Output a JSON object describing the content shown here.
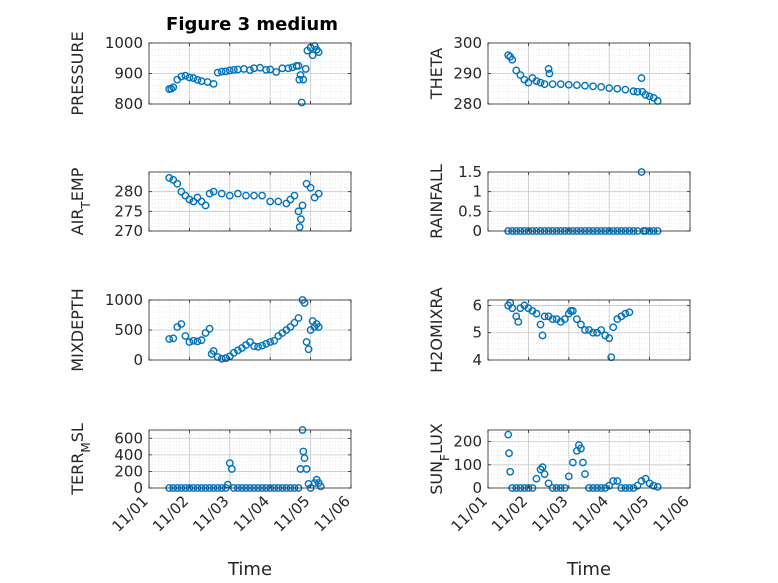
{
  "figure": {
    "title": "Figure 3 medium",
    "marker_color": "#0072BD",
    "marker": "open circle",
    "grid": true,
    "minor_grid": true
  },
  "chart_data": [
    {
      "type": "scatter",
      "ylabel": "PRESSURE",
      "ylim": [
        800,
        1000
      ],
      "yticks": [
        800,
        900,
        1000
      ],
      "ytick_labels": [
        "800",
        "900",
        "1000"
      ],
      "xlim": [
        1.0,
        6.0
      ],
      "xticks": [],
      "xtick_labels": [],
      "points": [
        [
          1.5,
          849
        ],
        [
          1.55,
          850
        ],
        [
          1.6,
          855
        ],
        [
          1.7,
          880
        ],
        [
          1.8,
          890
        ],
        [
          1.9,
          893
        ],
        [
          2.0,
          887
        ],
        [
          2.1,
          885
        ],
        [
          2.2,
          879
        ],
        [
          2.3,
          875
        ],
        [
          2.45,
          872
        ],
        [
          2.6,
          866
        ],
        [
          2.7,
          903
        ],
        [
          2.8,
          906
        ],
        [
          2.9,
          907
        ],
        [
          3.0,
          910
        ],
        [
          3.1,
          912
        ],
        [
          3.2,
          913
        ],
        [
          3.35,
          915
        ],
        [
          3.5,
          911
        ],
        [
          3.6,
          917
        ],
        [
          3.75,
          919
        ],
        [
          3.9,
          912
        ],
        [
          4.0,
          913
        ],
        [
          4.15,
          905
        ],
        [
          4.3,
          917
        ],
        [
          4.45,
          917
        ],
        [
          4.55,
          920
        ],
        [
          4.65,
          925
        ],
        [
          4.7,
          925
        ],
        [
          4.72,
          880
        ],
        [
          4.75,
          895
        ],
        [
          4.78,
          805
        ],
        [
          4.82,
          880
        ],
        [
          4.88,
          915
        ],
        [
          4.92,
          975
        ],
        [
          5.0,
          985
        ],
        [
          5.05,
          960
        ],
        [
          5.1,
          990
        ],
        [
          5.15,
          978
        ],
        [
          5.2,
          970
        ]
      ]
    },
    {
      "type": "scatter",
      "ylabel": "THETA",
      "ylim": [
        280,
        300
      ],
      "yticks": [
        280,
        290,
        300
      ],
      "ytick_labels": [
        "280",
        "290",
        "300"
      ],
      "xlim": [
        1.0,
        6.0
      ],
      "xticks": [],
      "xtick_labels": [],
      "points": [
        [
          1.5,
          296
        ],
        [
          1.55,
          295.5
        ],
        [
          1.6,
          294.5
        ],
        [
          1.7,
          291
        ],
        [
          1.8,
          289.5
        ],
        [
          1.9,
          288
        ],
        [
          2.0,
          287
        ],
        [
          2.1,
          288.5
        ],
        [
          2.2,
          287.5
        ],
        [
          2.3,
          287
        ],
        [
          2.4,
          286.5
        ],
        [
          2.5,
          291.5
        ],
        [
          2.52,
          290
        ],
        [
          2.6,
          286.5
        ],
        [
          2.8,
          286.5
        ],
        [
          3.0,
          286.3
        ],
        [
          3.2,
          286.2
        ],
        [
          3.4,
          286
        ],
        [
          3.6,
          285.8
        ],
        [
          3.8,
          285.6
        ],
        [
          4.0,
          285.2
        ],
        [
          4.2,
          285
        ],
        [
          4.4,
          284.7
        ],
        [
          4.6,
          284.2
        ],
        [
          4.7,
          284
        ],
        [
          4.8,
          288.5
        ],
        [
          4.82,
          284
        ],
        [
          4.9,
          283
        ],
        [
          5.0,
          282.5
        ],
        [
          5.1,
          282
        ],
        [
          5.2,
          281
        ]
      ]
    },
    {
      "type": "scatter",
      "ylabel": "AIR_TEMP",
      "ylim": [
        270,
        285
      ],
      "yticks": [
        270,
        275,
        280
      ],
      "ytick_labels": [
        "270",
        "275",
        "280"
      ],
      "xlim": [
        1.0,
        6.0
      ],
      "xticks": [],
      "xtick_labels": [],
      "points": [
        [
          1.5,
          283.5
        ],
        [
          1.6,
          283
        ],
        [
          1.7,
          282
        ],
        [
          1.8,
          280
        ],
        [
          1.9,
          279
        ],
        [
          2.0,
          278
        ],
        [
          2.1,
          277.5
        ],
        [
          2.2,
          278.5
        ],
        [
          2.3,
          277.5
        ],
        [
          2.4,
          276.5
        ],
        [
          2.5,
          279.5
        ],
        [
          2.6,
          280
        ],
        [
          2.8,
          279.5
        ],
        [
          3.0,
          279
        ],
        [
          3.2,
          279.5
        ],
        [
          3.4,
          279
        ],
        [
          3.6,
          279
        ],
        [
          3.8,
          279
        ],
        [
          4.0,
          277.5
        ],
        [
          4.2,
          277.5
        ],
        [
          4.4,
          277
        ],
        [
          4.5,
          278
        ],
        [
          4.6,
          279
        ],
        [
          4.7,
          275
        ],
        [
          4.73,
          271
        ],
        [
          4.76,
          273
        ],
        [
          4.8,
          276.5
        ],
        [
          4.9,
          282
        ],
        [
          5.0,
          281
        ],
        [
          5.1,
          278.5
        ],
        [
          5.2,
          279.5
        ]
      ]
    },
    {
      "type": "scatter",
      "ylabel": "RAINFALL",
      "ylim": [
        0,
        1.5
      ],
      "yticks": [
        0,
        0.5,
        1,
        1.5
      ],
      "ytick_labels": [
        "0",
        "0.5",
        "1",
        "1.5"
      ],
      "xlim": [
        1.0,
        6.0
      ],
      "xticks": [],
      "xtick_labels": [],
      "points": [
        [
          1.5,
          0
        ],
        [
          1.6,
          0
        ],
        [
          1.7,
          0
        ],
        [
          1.8,
          0
        ],
        [
          1.9,
          0
        ],
        [
          2.0,
          0
        ],
        [
          2.1,
          0
        ],
        [
          2.2,
          0
        ],
        [
          2.3,
          0
        ],
        [
          2.4,
          0
        ],
        [
          2.5,
          0
        ],
        [
          2.6,
          0
        ],
        [
          2.7,
          0
        ],
        [
          2.8,
          0
        ],
        [
          2.9,
          0
        ],
        [
          3.0,
          0
        ],
        [
          3.1,
          0
        ],
        [
          3.2,
          0
        ],
        [
          3.3,
          0
        ],
        [
          3.4,
          0
        ],
        [
          3.5,
          0
        ],
        [
          3.6,
          0
        ],
        [
          3.7,
          0
        ],
        [
          3.8,
          0
        ],
        [
          3.9,
          0
        ],
        [
          4.0,
          0
        ],
        [
          4.1,
          0
        ],
        [
          4.2,
          0
        ],
        [
          4.3,
          0
        ],
        [
          4.4,
          0
        ],
        [
          4.5,
          0
        ],
        [
          4.6,
          0
        ],
        [
          4.7,
          0
        ],
        [
          4.8,
          1.5
        ],
        [
          4.85,
          0
        ],
        [
          4.9,
          0
        ],
        [
          5.0,
          0
        ],
        [
          5.1,
          0
        ],
        [
          5.2,
          0
        ]
      ]
    },
    {
      "type": "scatter",
      "ylabel": "MIXDEPTH",
      "ylim": [
        0,
        1000
      ],
      "yticks": [
        0,
        500,
        1000
      ],
      "ytick_labels": [
        "0",
        "500",
        "1000"
      ],
      "xlim": [
        1.0,
        6.0
      ],
      "xticks": [],
      "xtick_labels": [],
      "points": [
        [
          1.5,
          350
        ],
        [
          1.6,
          360
        ],
        [
          1.7,
          550
        ],
        [
          1.8,
          600
        ],
        [
          1.9,
          400
        ],
        [
          2.0,
          300
        ],
        [
          2.1,
          320
        ],
        [
          2.2,
          310
        ],
        [
          2.3,
          330
        ],
        [
          2.4,
          450
        ],
        [
          2.5,
          520
        ],
        [
          2.55,
          100
        ],
        [
          2.6,
          150
        ],
        [
          2.7,
          50
        ],
        [
          2.8,
          20
        ],
        [
          2.9,
          30
        ],
        [
          3.0,
          60
        ],
        [
          3.1,
          120
        ],
        [
          3.2,
          160
        ],
        [
          3.3,
          200
        ],
        [
          3.4,
          250
        ],
        [
          3.5,
          300
        ],
        [
          3.6,
          230
        ],
        [
          3.7,
          220
        ],
        [
          3.8,
          240
        ],
        [
          3.9,
          270
        ],
        [
          4.0,
          300
        ],
        [
          4.1,
          320
        ],
        [
          4.2,
          400
        ],
        [
          4.3,
          450
        ],
        [
          4.4,
          500
        ],
        [
          4.5,
          550
        ],
        [
          4.6,
          620
        ],
        [
          4.7,
          700
        ],
        [
          4.8,
          1000
        ],
        [
          4.85,
          950
        ],
        [
          4.9,
          300
        ],
        [
          4.95,
          180
        ],
        [
          5.0,
          500
        ],
        [
          5.05,
          650
        ],
        [
          5.1,
          550
        ],
        [
          5.15,
          600
        ],
        [
          5.2,
          550
        ]
      ]
    },
    {
      "type": "scatter",
      "ylabel": "H2OMIXRA",
      "ylim": [
        4,
        6.2
      ],
      "yticks": [
        4,
        5,
        6
      ],
      "ytick_labels": [
        "4",
        "5",
        "6"
      ],
      "xlim": [
        1.0,
        6.0
      ],
      "xticks": [],
      "xtick_labels": [],
      "points": [
        [
          1.5,
          6
        ],
        [
          1.55,
          6.1
        ],
        [
          1.6,
          5.9
        ],
        [
          1.7,
          5.6
        ],
        [
          1.75,
          5.4
        ],
        [
          1.8,
          5.9
        ],
        [
          1.9,
          6
        ],
        [
          2.0,
          5.9
        ],
        [
          2.1,
          5.8
        ],
        [
          2.2,
          5.7
        ],
        [
          2.3,
          5.3
        ],
        [
          2.35,
          4.9
        ],
        [
          2.4,
          5.6
        ],
        [
          2.5,
          5.6
        ],
        [
          2.6,
          5.5
        ],
        [
          2.7,
          5.5
        ],
        [
          2.8,
          5.4
        ],
        [
          2.9,
          5.5
        ],
        [
          3.0,
          5.7
        ],
        [
          3.05,
          5.8
        ],
        [
          3.1,
          5.8
        ],
        [
          3.2,
          5.5
        ],
        [
          3.3,
          5.3
        ],
        [
          3.4,
          5.1
        ],
        [
          3.5,
          5.1
        ],
        [
          3.6,
          5.0
        ],
        [
          3.7,
          5.0
        ],
        [
          3.8,
          5.1
        ],
        [
          3.9,
          4.9
        ],
        [
          4.0,
          4.8
        ],
        [
          4.05,
          4.1
        ],
        [
          4.1,
          5.2
        ],
        [
          4.2,
          5.5
        ],
        [
          4.3,
          5.6
        ],
        [
          4.4,
          5.7
        ],
        [
          4.5,
          5.75
        ]
      ]
    },
    {
      "type": "scatter",
      "ylabel": "TERR_MSL",
      "ylim": [
        0,
        700
      ],
      "yticks": [
        0,
        200,
        400,
        600
      ],
      "ytick_labels": [
        "0",
        "200",
        "400",
        "600"
      ],
      "xlim": [
        1.0,
        6.0
      ],
      "xticks": [
        1,
        2,
        3,
        4,
        5,
        6
      ],
      "xtick_labels": [
        "11/01",
        "11/02",
        "11/03",
        "11/04",
        "11/05",
        "11/06"
      ],
      "xlabel": "Time",
      "points": [
        [
          1.5,
          0
        ],
        [
          1.6,
          0
        ],
        [
          1.7,
          0
        ],
        [
          1.8,
          0
        ],
        [
          1.9,
          0
        ],
        [
          2.0,
          0
        ],
        [
          2.1,
          0
        ],
        [
          2.2,
          0
        ],
        [
          2.3,
          0
        ],
        [
          2.4,
          0
        ],
        [
          2.5,
          0
        ],
        [
          2.6,
          0
        ],
        [
          2.7,
          0
        ],
        [
          2.8,
          0
        ],
        [
          2.9,
          0
        ],
        [
          2.95,
          40
        ],
        [
          3.0,
          300
        ],
        [
          3.05,
          230
        ],
        [
          3.1,
          0
        ],
        [
          3.2,
          0
        ],
        [
          3.3,
          0
        ],
        [
          3.4,
          0
        ],
        [
          3.5,
          0
        ],
        [
          3.6,
          0
        ],
        [
          3.7,
          0
        ],
        [
          3.8,
          0
        ],
        [
          3.9,
          0
        ],
        [
          4.0,
          0
        ],
        [
          4.1,
          0
        ],
        [
          4.2,
          0
        ],
        [
          4.3,
          0
        ],
        [
          4.4,
          0
        ],
        [
          4.5,
          0
        ],
        [
          4.6,
          0
        ],
        [
          4.7,
          0
        ],
        [
          4.75,
          230
        ],
        [
          4.8,
          700
        ],
        [
          4.82,
          440
        ],
        [
          4.85,
          360
        ],
        [
          4.9,
          230
        ],
        [
          4.95,
          50
        ],
        [
          5.0,
          0
        ],
        [
          5.1,
          60
        ],
        [
          5.15,
          100
        ],
        [
          5.2,
          60
        ],
        [
          5.25,
          20
        ]
      ]
    },
    {
      "type": "scatter",
      "ylabel": "SUN_FLUX",
      "ylim": [
        0,
        250
      ],
      "yticks": [
        0,
        100,
        200
      ],
      "ytick_labels": [
        "0",
        "100",
        "200"
      ],
      "xlim": [
        1.0,
        6.0
      ],
      "xticks": [
        1,
        2,
        3,
        4,
        5,
        6
      ],
      "xtick_labels": [
        "11/01",
        "11/02",
        "11/03",
        "11/04",
        "11/05",
        "11/06"
      ],
      "xlabel": "Time",
      "points": [
        [
          1.5,
          230
        ],
        [
          1.52,
          150
        ],
        [
          1.55,
          70
        ],
        [
          1.6,
          0
        ],
        [
          1.7,
          0
        ],
        [
          1.8,
          0
        ],
        [
          1.9,
          0
        ],
        [
          2.0,
          0
        ],
        [
          2.1,
          0
        ],
        [
          2.2,
          40
        ],
        [
          2.3,
          80
        ],
        [
          2.35,
          90
        ],
        [
          2.4,
          60
        ],
        [
          2.5,
          20
        ],
        [
          2.6,
          0
        ],
        [
          2.7,
          0
        ],
        [
          2.8,
          0
        ],
        [
          2.9,
          0
        ],
        [
          3.0,
          50
        ],
        [
          3.1,
          110
        ],
        [
          3.2,
          160
        ],
        [
          3.25,
          185
        ],
        [
          3.3,
          170
        ],
        [
          3.35,
          110
        ],
        [
          3.4,
          60
        ],
        [
          3.5,
          0
        ],
        [
          3.6,
          0
        ],
        [
          3.7,
          0
        ],
        [
          3.8,
          0
        ],
        [
          3.9,
          0
        ],
        [
          4.0,
          10
        ],
        [
          4.1,
          30
        ],
        [
          4.2,
          30
        ],
        [
          4.3,
          0
        ],
        [
          4.4,
          0
        ],
        [
          4.5,
          0
        ],
        [
          4.6,
          0
        ],
        [
          4.7,
          10
        ],
        [
          4.8,
          30
        ],
        [
          4.9,
          40
        ],
        [
          5.0,
          20
        ],
        [
          5.1,
          10
        ],
        [
          5.2,
          5
        ]
      ]
    }
  ]
}
